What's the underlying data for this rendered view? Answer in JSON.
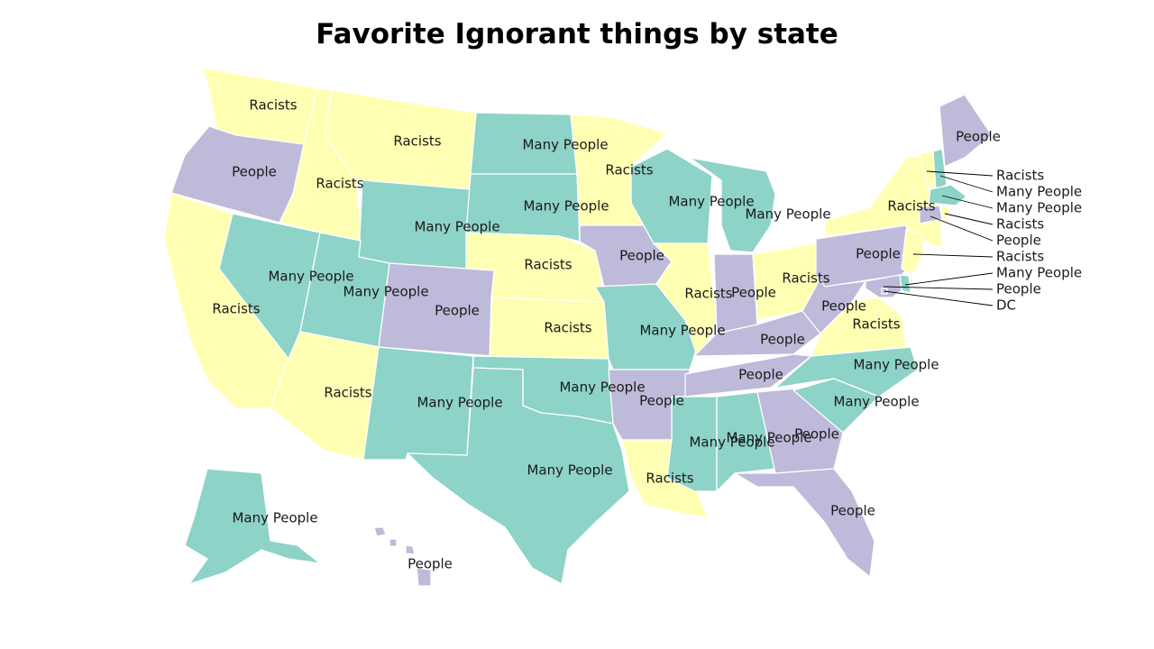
{
  "title": "Favorite Ignorant things by state",
  "colors": {
    "racists": "#ffffb3",
    "many_people": "#8dd3c7",
    "people": "#bebada"
  },
  "states": [
    {
      "id": "WA",
      "cat": "racists",
      "label": "Racists"
    },
    {
      "id": "OR",
      "cat": "people",
      "label": "People"
    },
    {
      "id": "CA",
      "cat": "racists",
      "label": "Racists"
    },
    {
      "id": "NV",
      "cat": "many_people",
      "label": "Many People"
    },
    {
      "id": "ID",
      "cat": "racists",
      "label": "Racists"
    },
    {
      "id": "MT",
      "cat": "racists",
      "label": "Racists"
    },
    {
      "id": "WY",
      "cat": "many_people",
      "label": "Many People"
    },
    {
      "id": "UT",
      "cat": "many_people",
      "label": "Many People"
    },
    {
      "id": "AZ",
      "cat": "racists",
      "label": "Racists"
    },
    {
      "id": "CO",
      "cat": "people",
      "label": "People"
    },
    {
      "id": "NM",
      "cat": "many_people",
      "label": "Many People"
    },
    {
      "id": "ND",
      "cat": "many_people",
      "label": "Many People"
    },
    {
      "id": "SD",
      "cat": "many_people",
      "label": "Many People"
    },
    {
      "id": "NE",
      "cat": "racists",
      "label": "Racists"
    },
    {
      "id": "KS",
      "cat": "racists",
      "label": "Racists"
    },
    {
      "id": "OK",
      "cat": "many_people",
      "label": "Many People"
    },
    {
      "id": "TX",
      "cat": "many_people",
      "label": "Many People"
    },
    {
      "id": "MN",
      "cat": "racists",
      "label": "Racists"
    },
    {
      "id": "IA",
      "cat": "people",
      "label": "People"
    },
    {
      "id": "MO",
      "cat": "many_people",
      "label": "Many People"
    },
    {
      "id": "AR",
      "cat": "people",
      "label": "People"
    },
    {
      "id": "LA",
      "cat": "racists",
      "label": "Racists"
    },
    {
      "id": "WI",
      "cat": "many_people",
      "label": "Many People"
    },
    {
      "id": "IL",
      "cat": "racists",
      "label": "Racists"
    },
    {
      "id": "MI",
      "cat": "many_people",
      "label": "Many People"
    },
    {
      "id": "IN",
      "cat": "people",
      "label": "People"
    },
    {
      "id": "OH",
      "cat": "racists",
      "label": "Racists"
    },
    {
      "id": "KY",
      "cat": "people",
      "label": "People"
    },
    {
      "id": "TN",
      "cat": "people",
      "label": "People"
    },
    {
      "id": "MS",
      "cat": "many_people",
      "label": "Many People"
    },
    {
      "id": "AL",
      "cat": "many_people",
      "label": "Many People"
    },
    {
      "id": "GA",
      "cat": "people",
      "label": "People"
    },
    {
      "id": "FL",
      "cat": "people",
      "label": "People"
    },
    {
      "id": "SC",
      "cat": "many_people",
      "label": "Many People"
    },
    {
      "id": "NC",
      "cat": "many_people",
      "label": "Many People"
    },
    {
      "id": "VA",
      "cat": "racists",
      "label": "Racists"
    },
    {
      "id": "WV",
      "cat": "people",
      "label": "People"
    },
    {
      "id": "PA",
      "cat": "people",
      "label": "People"
    },
    {
      "id": "NY",
      "cat": "racists",
      "label": "Racists"
    },
    {
      "id": "ME",
      "cat": "people",
      "label": "People"
    },
    {
      "id": "AK",
      "cat": "many_people",
      "label": "Many People"
    },
    {
      "id": "HI",
      "cat": "people",
      "label": "People"
    },
    {
      "id": "VT",
      "cat": "racists",
      "label": "Racists"
    },
    {
      "id": "NH",
      "cat": "many_people",
      "label": "Many People"
    },
    {
      "id": "MA",
      "cat": "many_people",
      "label": "Many People"
    },
    {
      "id": "RI",
      "cat": "racists",
      "label": "Racists"
    },
    {
      "id": "CT",
      "cat": "people",
      "label": "People"
    },
    {
      "id": "NJ",
      "cat": "racists",
      "label": "Racists"
    },
    {
      "id": "DE",
      "cat": "many_people",
      "label": "Many People"
    },
    {
      "id": "MD",
      "cat": "people",
      "label": "People"
    },
    {
      "id": "DC",
      "cat": "people",
      "label": "DC"
    }
  ]
}
